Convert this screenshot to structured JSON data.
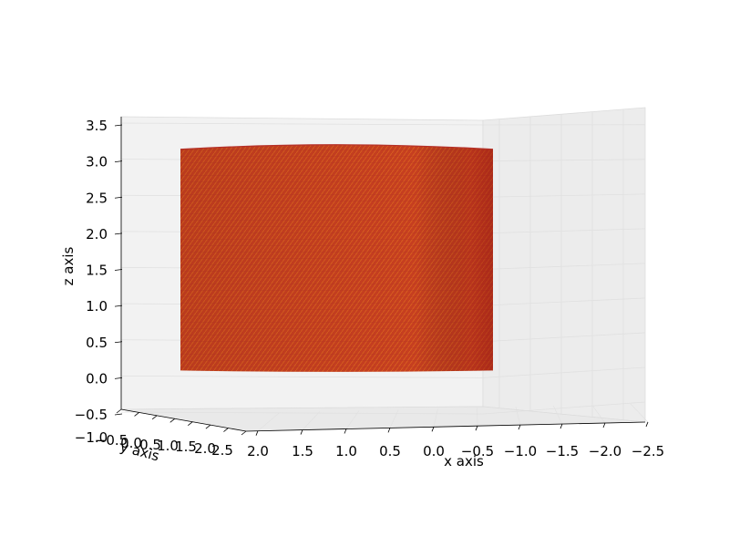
{
  "chart_data": {
    "type": "surface3d",
    "xlabel": "x axis",
    "ylabel": "y axis",
    "zlabel": "z axis",
    "x_ticks": [
      "2.0",
      "1.5",
      "1.0",
      "0.5",
      "0.0",
      "−0.5",
      "−1.0",
      "−1.5",
      "−2.0",
      "−2.5"
    ],
    "y_ticks": [
      "−1.0",
      "−0.5",
      "0.0",
      "0.5",
      "1.0",
      "1.5",
      "2.0",
      "2.5"
    ],
    "z_ticks": [
      "−0.5",
      "0.0",
      "0.5",
      "1.0",
      "1.5",
      "2.0",
      "2.5",
      "3.0",
      "3.5"
    ],
    "xlim": [
      2.0,
      -2.5
    ],
    "ylim": [
      -1.0,
      2.5
    ],
    "zlim": [
      -0.5,
      3.5
    ],
    "surface": {
      "shape": "cylinder",
      "center": [
        0.0,
        0.75
      ],
      "radius": 1.75,
      "z_range": [
        0.0,
        3.2
      ]
    },
    "colors": {
      "surface_face": "#c9421f",
      "surface_shade": "#b53028",
      "surface_edge": "#e0701f",
      "pane": "#f2f2f2",
      "grid": "#e0e0e0"
    },
    "grid": true
  }
}
